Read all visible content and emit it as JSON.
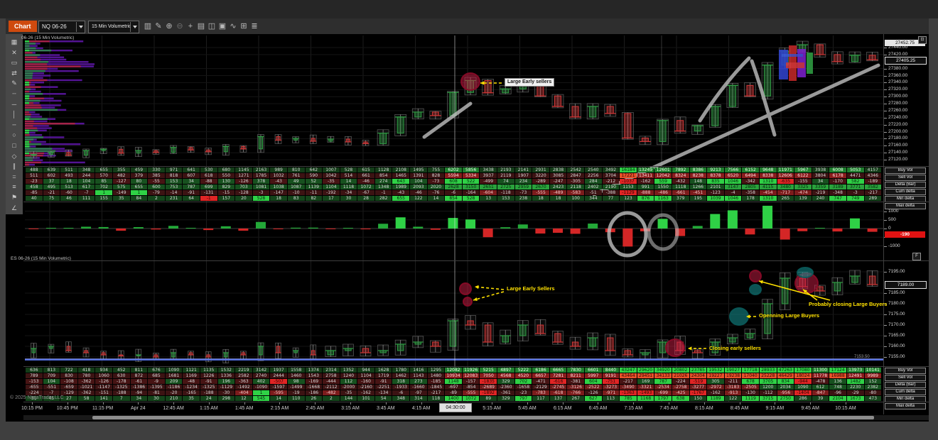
{
  "window": {
    "copyright": "© 2025 NinjaTrader LLC"
  },
  "toolbar": {
    "chart_tab": "Chart",
    "instrument": "NQ 06-26",
    "interval": "15 Min Volumetric",
    "icons": [
      {
        "name": "chart-style-icon",
        "glyph": "▥"
      },
      {
        "name": "draw-icon",
        "glyph": "✎"
      },
      {
        "name": "zoom-in-icon",
        "glyph": "⊕"
      },
      {
        "name": "zoom-out-icon",
        "glyph": "⊖"
      },
      {
        "name": "crosshair-icon",
        "glyph": "+"
      },
      {
        "name": "report-icon",
        "glyph": "▤"
      },
      {
        "name": "data-box-icon",
        "glyph": "◫"
      },
      {
        "name": "snapshot-icon",
        "glyph": "▣"
      },
      {
        "name": "indicators-icon",
        "glyph": "∿"
      },
      {
        "name": "properties-icon",
        "glyph": "⊞"
      },
      {
        "name": "list-icon",
        "glyph": "≣"
      }
    ]
  },
  "drawing_toolbar": {
    "icons": [
      {
        "name": "region-highlight-icon",
        "glyph": "▦"
      },
      {
        "name": "trash-icon",
        "glyph": "✕"
      },
      {
        "name": "ruler-icon",
        "glyph": "▭"
      },
      {
        "name": "arrows-icon",
        "glyph": "⇄"
      },
      {
        "name": "pencil-icon",
        "glyph": "✎"
      },
      {
        "name": "dotted-line-icon",
        "glyph": "┄"
      },
      {
        "name": "segment-icon",
        "glyph": "─"
      },
      {
        "name": "vertical-line-icon",
        "glyph": "│"
      },
      {
        "name": "horizontal-line-icon",
        "glyph": "╌"
      },
      {
        "name": "ellipse-icon",
        "glyph": "○"
      },
      {
        "name": "rectangle-icon",
        "glyph": "□"
      },
      {
        "name": "polygon-icon",
        "glyph": "◇"
      },
      {
        "name": "parallel-channel-icon",
        "glyph": "∥"
      },
      {
        "name": "equals-icon",
        "glyph": "="
      },
      {
        "name": "triple-line-icon",
        "glyph": "≡"
      },
      {
        "name": "flag-icon",
        "glyph": "⚑"
      },
      {
        "name": "trend-angle-icon",
        "glyph": "∠"
      }
    ]
  },
  "panels": {
    "nq": {
      "title": "06-26 (15 Min Volumetric)",
      "last_price": "27452.75",
      "current_price": "27405.25",
      "axis": [
        "27440.00",
        "27420.00",
        "27380.00",
        "27360.00",
        "27340.00",
        "27320.00",
        "27300.00",
        "27280.00",
        "27260.00",
        "27240.00",
        "27220.00",
        "27200.00",
        "27180.00",
        "27160.00",
        "27140.00",
        "27120.00"
      ]
    },
    "delta": {
      "axis": [
        "1000",
        "500",
        "0",
        "-500",
        "-1000"
      ],
      "current": "-190",
      "fit_label": "F"
    },
    "es": {
      "title": "ES 06-26 (15 Min Volumetric)",
      "current_price": "7189.00",
      "level": "7153.50",
      "axis": [
        "7195.00",
        "7185.00",
        "7180.00",
        "7175.00",
        "7170.00",
        "7165.00",
        "7160.00",
        "7155.00"
      ]
    }
  },
  "row_labels": [
    "Buy Vol",
    "Sell Vol",
    "Delta (Bar)",
    "Cum delta",
    "Min delta",
    "Max delta"
  ],
  "tables": {
    "nq": {
      "rows": [
        {
          "label": "Buy Vol",
          "values": [
            488,
            639,
            511,
            348,
            655,
            355,
            459,
            330,
            971,
            641,
            530,
            680,
            1145,
            2163,
            989,
            810,
            642,
            1007,
            528,
            615,
            1128,
            2108,
            1495,
            755,
            6202,
            5856,
            3438,
            2193,
            2141,
            2931,
            2838,
            2542,
            2540,
            3492,
            16184,
            13249,
            12601,
            7892,
            8386,
            9213,
            7566,
            6152,
            9648,
            11971,
            5967,
            3938,
            6008,
            5053,
            4157
          ]
        },
        {
          "label": "Sell Vol",
          "values": [
            511,
            602,
            493,
            244,
            570,
            482,
            379,
            385,
            818,
            607,
            618,
            550,
            1271,
            1785,
            1032,
            761,
            590,
            1042,
            514,
            661,
            854,
            1465,
            1391,
            828,
            5594,
            5334,
            3937,
            2119,
            1907,
            3220,
            3085,
            2847,
            2256,
            3704,
            17221,
            13411,
            12042,
            8324,
            8238,
            8378,
            6520,
            6494,
            8338,
            12606,
            6122,
            3804,
            6178,
            4471,
            4346
          ]
        },
        {
          "label": "Delta (Bar)",
          "values": [
            -23,
            37,
            18,
            104,
            85,
            -127,
            80,
            -55,
            153,
            34,
            -88,
            130,
            -126,
            378,
            -43,
            49,
            52,
            -35,
            14,
            -46,
            274,
            643,
            104,
            -73,
            608,
            522,
            -499,
            74,
            234,
            -289,
            -247,
            -305,
            284,
            -212,
            -1037,
            -162,
            559,
            -432,
            148,
            835,
            1046,
            -342,
            1310,
            -635,
            -155,
            34,
            -170,
            582,
            -189
          ]
        },
        {
          "label": "Cum delta",
          "values": [
            458,
            495,
            513,
            617,
            702,
            575,
            655,
            600,
            753,
            787,
            699,
            829,
            703,
            1081,
            1038,
            1087,
            1139,
            1104,
            1118,
            1072,
            1348,
            1989,
            2093,
            2020,
            2628,
            3150,
            2651,
            2725,
            2959,
            2670,
            2423,
            2118,
            2402,
            2190,
            1153,
            991,
            1550,
            1118,
            1266,
            2101,
            3147,
            2805,
            4115,
            3480,
            3325,
            3359,
            3189,
            3771,
            3582
          ]
        },
        {
          "label": "Min delta",
          "values": [
            -85,
            -21,
            -60,
            -7,
            1,
            -149,
            1,
            -79,
            -14,
            -91,
            -131,
            -15,
            -128,
            -3,
            -147,
            -10,
            -11,
            -192,
            -34,
            -67,
            -1,
            -43,
            -46,
            -76,
            -6,
            -164,
            -604,
            -118,
            -73,
            -555,
            -489,
            -583,
            -51,
            -388,
            -1129,
            -888,
            -486,
            -661,
            -451,
            -123,
            -4,
            -358,
            -454,
            -717,
            -474,
            -219,
            -348,
            -3,
            -217
          ]
        },
        {
          "label": "Max delta",
          "values": [
            40,
            75,
            46,
            111,
            155,
            35,
            84,
            2,
            231,
            64,
            -1,
            157,
            20,
            528,
            18,
            83,
            82,
            17,
            30,
            28,
            282,
            655,
            122,
            14,
            854,
            528,
            13,
            153,
            238,
            18,
            18,
            100,
            344,
            77,
            123,
            876,
            1163,
            379,
            195,
            1039,
            1046,
            178,
            1310,
            265,
            139,
            240,
            747,
            749,
            289
          ]
        }
      ]
    },
    "es": {
      "rows": [
        {
          "label": "Buy Vol",
          "values": [
            636,
            813,
            722,
            418,
            934,
            452,
            811,
            676,
            1090,
            1121,
            1135,
            1532,
            2219,
            3142,
            1937,
            1558,
            1374,
            2314,
            1352,
            944,
            1628,
            1780,
            1416,
            1295,
            12082,
            11926,
            5215,
            4897,
            5222,
            6186,
            6665,
            7830,
            6601,
            8440,
            43247,
            29620,
            34920,
            20802,
            23785,
            19532,
            19027,
            17718,
            28933,
            47263,
            17080,
            11300,
            17124,
            13973,
            10141
          ]
        },
        {
          "label": "Sell Vol",
          "values": [
            789,
            709,
            830,
            780,
            1060,
            630,
            872,
            685,
            1681,
            1169,
            1226,
            1336,
            2582,
            2740,
            2444,
            1460,
            1543,
            2758,
            1240,
            1104,
            1719,
            1462,
            1143,
            1480,
            10934,
            12083,
            7050,
            4568,
            4520,
            6657,
            7281,
            8211,
            5997,
            9191,
            43464,
            29451,
            34133,
            21026,
            24304,
            19227,
            19238,
            17040,
            25228,
            46429,
            18024,
            11778,
            16988,
            12491,
            9989
          ]
        },
        {
          "label": "Delta (Bar)",
          "values": [
            -153,
            104,
            -108,
            -362,
            -126,
            -178,
            -61,
            -9,
            209,
            -48,
            -91,
            196,
            -363,
            402,
            -507,
            98,
            -169,
            -444,
            112,
            -160,
            -91,
            318,
            273,
            -185,
            1148,
            -157,
            -1835,
            329,
            702,
            -471,
            -616,
            -381,
            604,
            -751,
            -217,
            169,
            787,
            -224,
            -519,
            305,
            -211,
            678,
            3705,
            834,
            -944,
            -478,
            136,
            1482,
            152
          ]
        },
        {
          "label": "Cum delta",
          "values": [
            -655,
            -551,
            -659,
            -1021,
            -1147,
            -1325,
            -1386,
            -1395,
            -1186,
            -1234,
            -1325,
            -1129,
            -1492,
            -1090,
            -1597,
            -1499,
            -1668,
            -2112,
            -2000,
            -2160,
            -2251,
            -1933,
            -1660,
            -1845,
            -697,
            -854,
            -2689,
            -2360,
            -1658,
            -2129,
            -2745,
            -3126,
            -2522,
            -3273,
            -3490,
            -3321,
            -2534,
            -2758,
            -3277,
            -2972,
            -3183,
            -2505,
            1200,
            2034,
            1090,
            612,
            748,
            2230,
            2382
          ]
        },
        {
          "label": "Min delta",
          "values": [
            -224,
            -7,
            -129,
            -362,
            -151,
            -188,
            -94,
            -81,
            -20,
            -165,
            -188,
            -30,
            -404,
            1,
            -595,
            -19,
            -186,
            -482,
            -35,
            -162,
            -134,
            -6,
            -97,
            -217,
            -89,
            -555,
            -1892,
            -361,
            -23,
            -783,
            -618,
            -766,
            -126,
            -971,
            -1363,
            -1493,
            -699,
            -425,
            -1767,
            -162,
            -913,
            -130,
            -112,
            -956,
            -1404,
            -847,
            -96,
            -29,
            -80
          ]
        },
        {
          "label": "Max delta",
          "values": [
            31,
            45,
            27,
            58,
            141,
            7,
            34,
            30,
            210,
            35,
            24,
            298,
            12,
            545,
            14,
            110,
            26,
            2,
            144,
            101,
            54,
            348,
            314,
            118,
            1400,
            1072,
            89,
            329,
            797,
            117,
            137,
            267,
            627,
            113,
            785,
            1168,
            1797,
            638,
            150,
            1189,
            122,
            1119,
            3715,
            2750,
            286,
            39,
            2104,
            1673,
            473
          ]
        }
      ]
    }
  },
  "time_axis": {
    "labels": [
      "10:15 PM",
      "10:45 PM",
      "11:15 PM",
      "Apr 24",
      "12:45 AM",
      "1:15 AM",
      "1:45 AM",
      "2:15 AM",
      "2:45 AM",
      "3:15 AM",
      "3:45 AM",
      "4:15 AM",
      "4:45 AM",
      "5:15 AM",
      "5:45 AM",
      "6:15 AM",
      "6:45 AM",
      "7:15 AM",
      "7:45 AM",
      "8:15 AM",
      "8:45 AM",
      "9:15 AM",
      "9:45 AM",
      "10:15 AM"
    ],
    "crosshair": "04:30:00"
  },
  "annotations": [
    {
      "id": "nq-large-early-sellers",
      "text": "Large Early sellers",
      "style": "boxed"
    },
    {
      "id": "es-large-early-sellers",
      "text": "Large Early Sellers",
      "style": "yellow"
    },
    {
      "id": "es-prob-closing-large-buyers",
      "text": "Probably closing Large Buyers",
      "style": "yellow"
    },
    {
      "id": "es-opening-large-buyers",
      "text": "Openning Large Buyers",
      "style": "yellow"
    },
    {
      "id": "es-closing-early-sellers",
      "text": "Closing early sellers",
      "style": "yellow"
    }
  ],
  "chart_data": [
    {
      "type": "candlestick",
      "name": "NQ 06-26 15 Min Volumetric",
      "x_start": "10:15 PM",
      "x_end": "10:15 AM",
      "ylim": [
        27100,
        27460
      ],
      "closes": [
        27135,
        27141,
        27133,
        27146,
        27150,
        27139,
        27146,
        27141,
        27155,
        27148,
        27143,
        27158,
        27151,
        27186,
        27176,
        27181,
        27173,
        27179,
        27171,
        27166,
        27196,
        27242,
        27256,
        27246,
        27312,
        27346,
        27311,
        27322,
        27341,
        27302,
        27272,
        27242,
        27272,
        27252,
        27182,
        27172,
        27232,
        27202,
        27217,
        27272,
        27332,
        27302,
        27390,
        27430,
        27448,
        27420,
        27400,
        27418,
        27405
      ]
    },
    {
      "type": "bar",
      "name": "NQ Delta (Bar) histogram",
      "ylim": [
        -1190,
        1190
      ],
      "values": [
        -23,
        37,
        18,
        104,
        85,
        -127,
        80,
        -55,
        153,
        34,
        -88,
        130,
        -126,
        378,
        -43,
        49,
        52,
        -35,
        14,
        -46,
        274,
        643,
        104,
        -73,
        608,
        522,
        -499,
        74,
        234,
        -289,
        -247,
        -305,
        284,
        -212,
        -1037,
        -162,
        559,
        -432,
        148,
        835,
        1046,
        -342,
        1310,
        -635,
        -155,
        34,
        -170,
        582,
        -189
      ]
    },
    {
      "type": "candlestick",
      "name": "ES 06-26 15 Min Volumetric",
      "x_start": "10:15 PM",
      "x_end": "10:15 AM",
      "ylim": [
        7150,
        7197
      ],
      "closes": [
        7159,
        7160,
        7158,
        7157,
        7156,
        7155.5,
        7156,
        7155,
        7157,
        7156,
        7155,
        7157,
        7156,
        7160,
        7157,
        7158,
        7156,
        7158,
        7159,
        7157,
        7158,
        7161,
        7162,
        7160,
        7172,
        7170,
        7162,
        7165,
        7170,
        7166,
        7162,
        7160,
        7164,
        7158,
        7156,
        7157,
        7162,
        7158,
        7157,
        7162,
        7164,
        7166,
        7180,
        7192,
        7188,
        7186,
        7190,
        7193,
        7189
      ]
    }
  ],
  "colors": {
    "accent_orange": "#cf4a0e",
    "lime": "#2fd146",
    "red": "#d42626",
    "annotation_yellow": "#ffe100",
    "level_blue": "#4d68d8",
    "profile_purple": "#5a16a0",
    "teal": "#1b9e9e"
  }
}
